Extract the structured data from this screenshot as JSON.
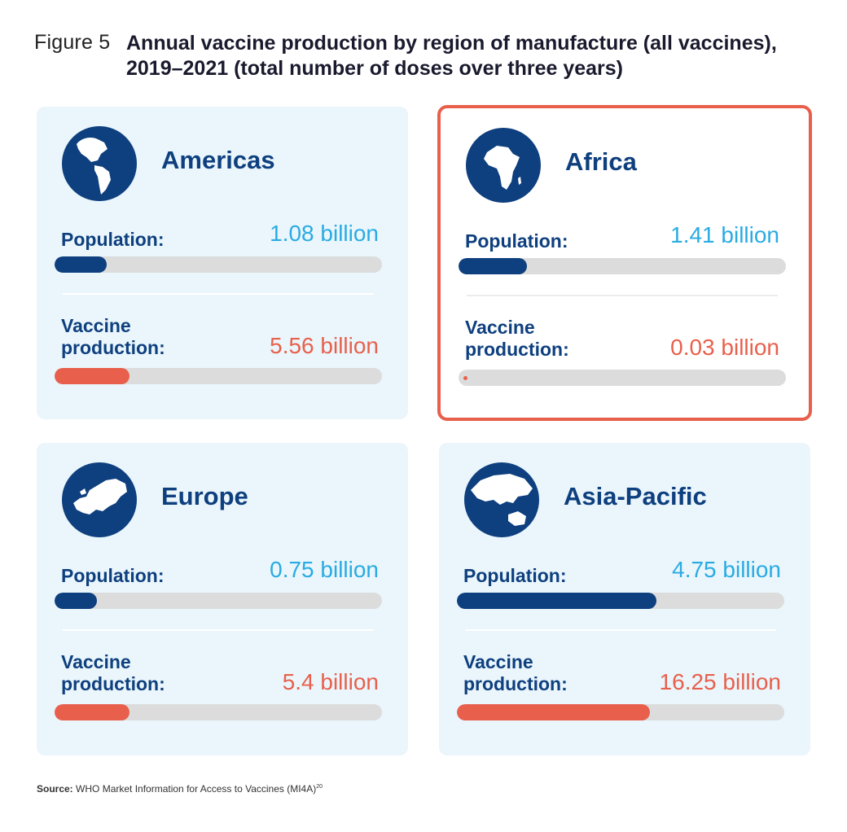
{
  "figure": {
    "label": "Figure 5",
    "title": "Annual vaccine production by region of manufacture (all vaccines), 2019–2021 (total number of doses over three years)"
  },
  "labels": {
    "population": "Population:",
    "vaccine_line1": "Vaccine",
    "vaccine_line2": "production:"
  },
  "source": {
    "prefix": "Source:",
    "text": "WHO Market Information for Access to Vaccines (MI4A)",
    "ref": "20"
  },
  "colors": {
    "population_value": "#29abe2",
    "vaccine_value": "#e8604c",
    "population_bar": "#0e3f7e",
    "vaccine_bar": "#e8604c",
    "card_bg": "#eaf6fc",
    "highlight_border": "#e8604c"
  },
  "chart_data": {
    "type": "bar",
    "categories": [
      "Americas",
      "Africa",
      "Europe",
      "Asia-Pacific"
    ],
    "unit": "billion",
    "series": [
      {
        "name": "Population",
        "values": [
          1.08,
          1.41,
          0.75,
          4.75
        ]
      },
      {
        "name": "Vaccine production",
        "values": [
          5.56,
          0.03,
          5.4,
          16.25
        ]
      }
    ],
    "highlighted_category": "Africa",
    "regions": [
      {
        "name": "Americas",
        "globe_icon": "americas-globe-icon",
        "population_text": "1.08 billion",
        "vaccine_text": "5.56 billion",
        "population_fill": 0.16,
        "vaccine_fill": 0.23
      },
      {
        "name": "Africa",
        "globe_icon": "africa-globe-icon",
        "population_text": "1.41 billion",
        "vaccine_text": "0.03 billion",
        "population_fill": 0.21,
        "vaccine_fill": 0.02
      },
      {
        "name": "Europe",
        "globe_icon": "europe-globe-icon",
        "population_text": "0.75 billion",
        "vaccine_text": "5.4 billion",
        "population_fill": 0.13,
        "vaccine_fill": 0.23
      },
      {
        "name": "Asia-Pacific",
        "globe_icon": "asia-pacific-globe-icon",
        "population_text": "4.75 billion",
        "vaccine_text": "16.25 billion",
        "population_fill": 0.61,
        "vaccine_fill": 0.59
      }
    ]
  }
}
